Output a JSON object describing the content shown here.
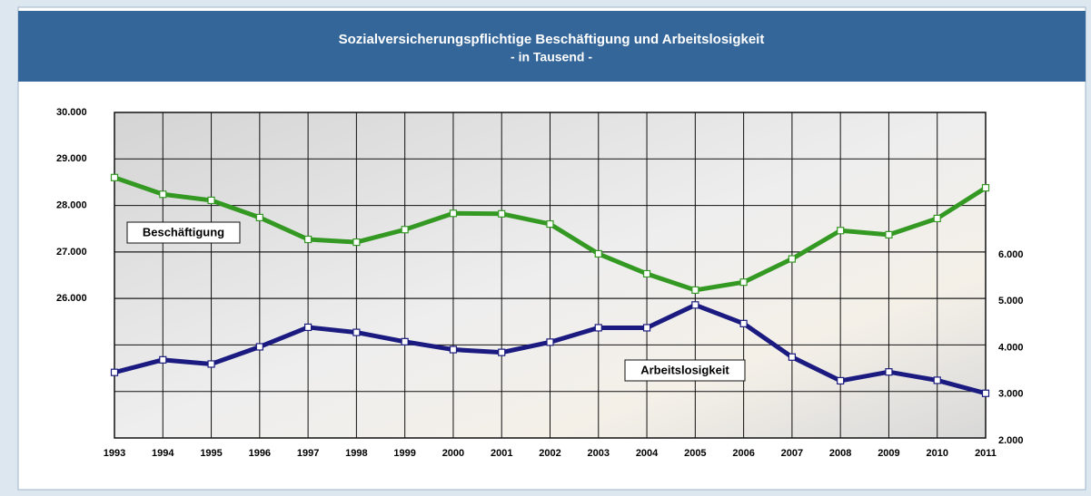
{
  "chart_data": {
    "type": "line",
    "title": "Sozialversicherungspflichtige Beschäftigung und Arbeitslosigkeit",
    "subtitle": "- in Tausend -",
    "categories": [
      "1993",
      "1994",
      "1995",
      "1996",
      "1997",
      "1998",
      "1999",
      "2000",
      "2001",
      "2002",
      "2003",
      "2004",
      "2005",
      "2006",
      "2007",
      "2008",
      "2009",
      "2010",
      "2011"
    ],
    "series": [
      {
        "name": "Beschäftigung",
        "color": "#339922",
        "values": [
          28600,
          28240,
          28110,
          27740,
          27270,
          27210,
          27480,
          27830,
          27820,
          27600,
          26960,
          26530,
          26180,
          26350,
          26850,
          27460,
          27370,
          27720,
          28380
        ]
      },
      {
        "name": "Arbeitslosigkeit",
        "color": "#1a1a80",
        "axis": "y2",
        "values": [
          3410,
          3680,
          3590,
          3960,
          4380,
          4270,
          4070,
          3900,
          3840,
          4060,
          4370,
          4370,
          4860,
          4460,
          3740,
          3230,
          3420,
          3240,
          2960
        ]
      }
    ],
    "ylim": [
      23000,
      30000
    ],
    "yticks": [
      {
        "value": 26000,
        "label": "26.000"
      },
      {
        "value": 27000,
        "label": "27.000"
      },
      {
        "value": 28000,
        "label": "28.000"
      },
      {
        "value": 29000,
        "label": "29.000"
      },
      {
        "value": 30000,
        "label": "30.000"
      }
    ],
    "y2lim": [
      2000,
      9000
    ],
    "y2ticks": [
      {
        "value": 2000,
        "label": "2.000"
      },
      {
        "value": 3000,
        "label": "3.000"
      },
      {
        "value": 4000,
        "label": "4.000"
      },
      {
        "value": 5000,
        "label": "5.000"
      },
      {
        "value": 6000,
        "label": "6.000"
      }
    ],
    "grid": true
  }
}
